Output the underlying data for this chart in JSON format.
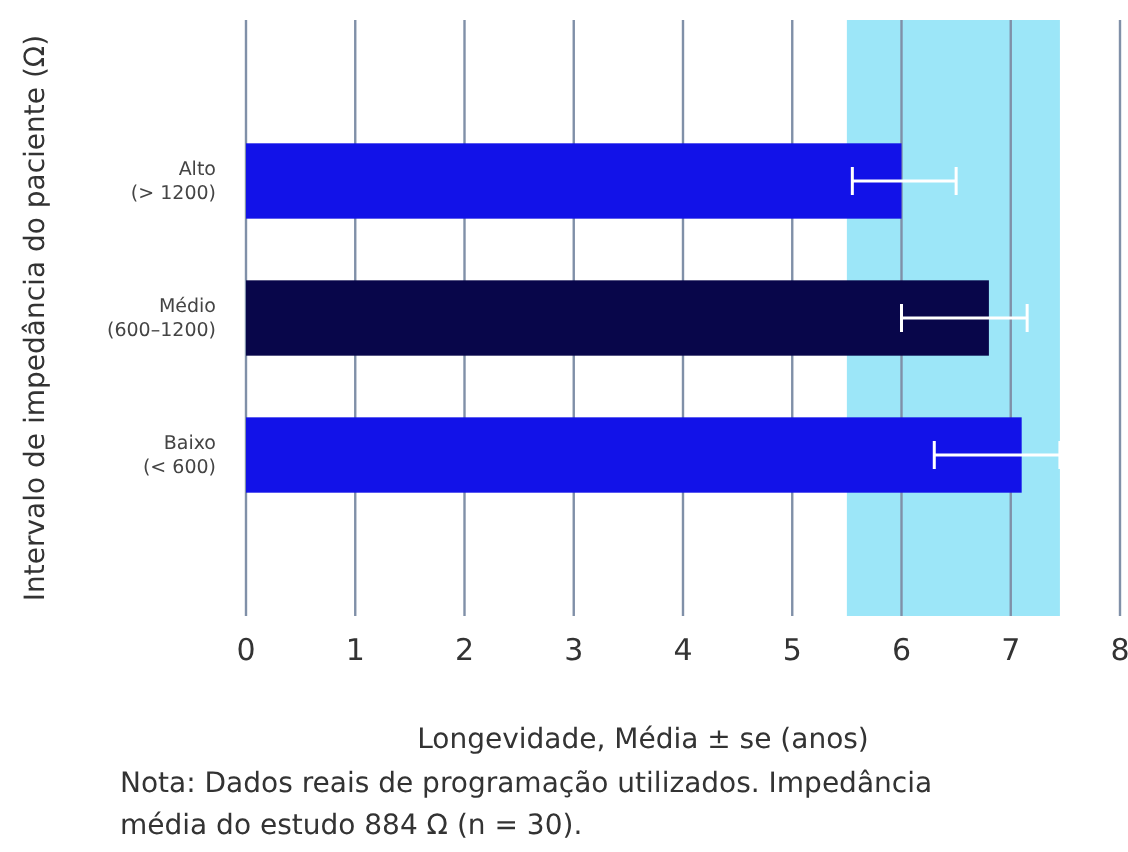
{
  "chart_data": {
    "type": "bar",
    "orientation": "horizontal",
    "categories": [
      "Alto\n(> 1200)",
      "Médio\n(600–1200)",
      "Baixo\n(< 600)"
    ],
    "values": [
      6.0,
      6.8,
      7.1
    ],
    "colors": [
      "#1212e8",
      "#08064a",
      "#1212e8"
    ],
    "errors": [
      [
        5.55,
        6.5
      ],
      [
        6.0,
        7.15
      ],
      [
        6.3,
        7.45
      ]
    ],
    "xlim": [
      0,
      8
    ],
    "xticks": [
      0,
      1,
      2,
      3,
      4,
      5,
      6,
      7,
      8
    ],
    "grid": "x",
    "bands": [
      {
        "axis": "x",
        "from": 5.5,
        "to": 7.45,
        "color": "#9ce6f8"
      }
    ],
    "xlabel": "Longevidade, Média ± se (anos)",
    "ylabel": "Intervalo de impedância do paciente (Ω)",
    "annotations": [
      "Nota: Dados reais de programação utilizados. Impedância média do estudo 884 Ω (n = 30)."
    ]
  }
}
